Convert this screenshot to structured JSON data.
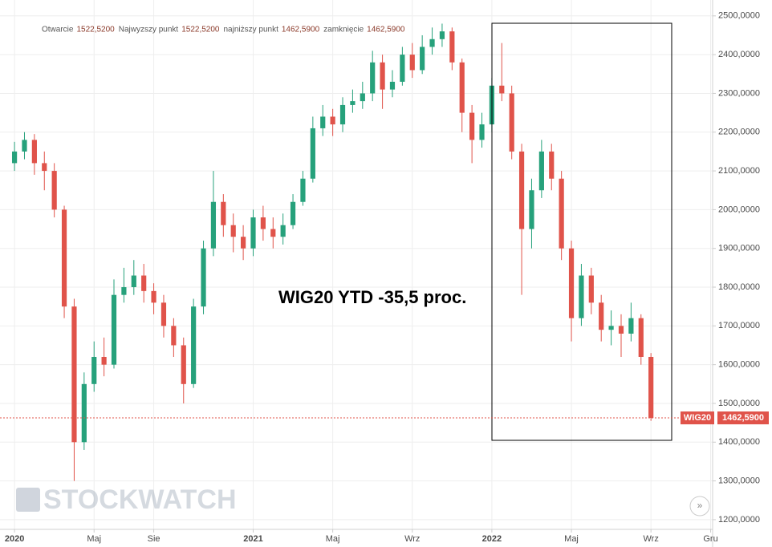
{
  "chart_data": {
    "type": "candlestick",
    "header": [
      {
        "name": "Otwarcie",
        "value": 1522.52,
        "label": "1522,5200"
      },
      {
        "name": "Najwyzszy punkt",
        "value": 1522.52,
        "label": "1522,5200"
      },
      {
        "name": "najniższy punkt",
        "value": 1462.59,
        "label": "1462,5900"
      },
      {
        "name": "zamknięcie",
        "value": 1462.59,
        "label": "1462,5900"
      }
    ],
    "annotation": "WIG20 YTD -35,5 proc.",
    "watermark": "STOCKWATCH",
    "symbol": "WIG20",
    "last": {
      "value": 1462.59,
      "label": "1462,5900"
    },
    "up_color": "#26a17b",
    "down_color": "#e0534a",
    "grid": true,
    "xlim": [
      -0.73,
      35.1
    ],
    "ylim": [
      1175,
      2541
    ],
    "xticks": [
      {
        "value": 0,
        "label": "2020"
      },
      {
        "value": 4,
        "label": "Maj"
      },
      {
        "value": 7,
        "label": "Sie"
      },
      {
        "value": 12,
        "label": "2021"
      },
      {
        "value": 16,
        "label": "Maj"
      },
      {
        "value": 20,
        "label": "Wrz"
      },
      {
        "value": 24,
        "label": "2022"
      },
      {
        "value": 28,
        "label": "Maj"
      },
      {
        "value": 32,
        "label": "Wrz"
      },
      {
        "value": 35,
        "label": "Gru"
      }
    ],
    "yticks": [
      {
        "value": 2500,
        "label": "2500,0000"
      },
      {
        "value": 2400,
        "label": "2400,0000"
      },
      {
        "value": 2300,
        "label": "2300,0000"
      },
      {
        "value": 2200,
        "label": "2200,0000"
      },
      {
        "value": 2100,
        "label": "2100,0000"
      },
      {
        "value": 2000,
        "label": "2000,0000"
      },
      {
        "value": 1900,
        "label": "1900,0000"
      },
      {
        "value": 1800,
        "label": "1800,0000"
      },
      {
        "value": 1700,
        "label": "1700,0000"
      },
      {
        "value": 1600,
        "label": "1600,0000"
      },
      {
        "value": 1500,
        "label": "1500,0000"
      },
      {
        "value": 1400,
        "label": "1400,0000"
      },
      {
        "value": 1300,
        "label": "1300,0000"
      },
      {
        "value": 1200,
        "label": "1200,0000"
      }
    ],
    "x": [
      0,
      0.5,
      1,
      1.5,
      2,
      2.5,
      3,
      3.5,
      4,
      4.5,
      5,
      5.5,
      6,
      6.5,
      7,
      7.5,
      8,
      8.5,
      9,
      9.5,
      10,
      10.5,
      11,
      11.5,
      12,
      12.5,
      13,
      13.5,
      14,
      14.5,
      15,
      15.5,
      16,
      16.5,
      17,
      17.5,
      18,
      18.5,
      19,
      19.5,
      20,
      20.5,
      21,
      21.5,
      22,
      22.5,
      23,
      23.5,
      24,
      24.5,
      25,
      25.5,
      26,
      26.5,
      27,
      27.5,
      28,
      28.5,
      29,
      29.5,
      30,
      30.5,
      31,
      31.5,
      32
    ],
    "open": [
      2120,
      2150,
      2180,
      2120,
      2100,
      2000,
      1750,
      1400,
      1550,
      1620,
      1600,
      1780,
      1800,
      1830,
      1790,
      1760,
      1700,
      1650,
      1550,
      1750,
      1900,
      2020,
      1960,
      1930,
      1900,
      1980,
      1950,
      1930,
      1960,
      2020,
      2080,
      2210,
      2240,
      2220,
      2270,
      2280,
      2300,
      2380,
      2310,
      2330,
      2400,
      2360,
      2420,
      2440,
      2460,
      2380,
      2250,
      2180,
      2220,
      2320,
      2300,
      2150,
      1950,
      2050,
      2150,
      2080,
      1900,
      1720,
      1830,
      1760,
      1690,
      1700,
      1680,
      1720,
      1620
    ],
    "high": [
      2175,
      2200,
      2195,
      2150,
      2120,
      2010,
      1770,
      1580,
      1660,
      1670,
      1820,
      1850,
      1870,
      1860,
      1810,
      1780,
      1720,
      1670,
      1770,
      1920,
      2100,
      2040,
      1990,
      1960,
      2000,
      2010,
      1980,
      1990,
      2040,
      2100,
      2240,
      2270,
      2260,
      2290,
      2310,
      2330,
      2410,
      2400,
      2360,
      2420,
      2430,
      2450,
      2470,
      2480,
      2470,
      2390,
      2270,
      2250,
      2340,
      2430,
      2320,
      2170,
      2080,
      2180,
      2170,
      2100,
      1920,
      1860,
      1850,
      1780,
      1740,
      1730,
      1760,
      1730,
      1630
    ],
    "low": [
      2100,
      2130,
      2090,
      2050,
      1980,
      1720,
      1300,
      1380,
      1530,
      1570,
      1590,
      1760,
      1780,
      1760,
      1730,
      1670,
      1620,
      1500,
      1540,
      1730,
      1880,
      1930,
      1890,
      1870,
      1880,
      1920,
      1900,
      1910,
      1950,
      2010,
      2070,
      2190,
      2190,
      2200,
      2250,
      2260,
      2280,
      2260,
      2290,
      2320,
      2340,
      2350,
      2400,
      2420,
      2360,
      2200,
      2120,
      2160,
      2200,
      2280,
      2130,
      1780,
      1900,
      2030,
      2050,
      1870,
      1660,
      1700,
      1730,
      1660,
      1650,
      1620,
      1660,
      1600,
      1455
    ],
    "close": [
      2150,
      2180,
      2120,
      2100,
      2000,
      1750,
      1400,
      1550,
      1620,
      1600,
      1780,
      1800,
      1830,
      1790,
      1760,
      1700,
      1650,
      1550,
      1750,
      1900,
      2020,
      1960,
      1930,
      1900,
      1980,
      1950,
      1930,
      1960,
      2020,
      2080,
      2210,
      2240,
      2220,
      2270,
      2280,
      2300,
      2380,
      2310,
      2330,
      2400,
      2360,
      2420,
      2440,
      2460,
      2380,
      2250,
      2180,
      2220,
      2320,
      2300,
      2150,
      1950,
      2050,
      2150,
      2080,
      1900,
      1720,
      1830,
      1760,
      1690,
      1700,
      1680,
      1720,
      1620,
      1462.59
    ]
  }
}
